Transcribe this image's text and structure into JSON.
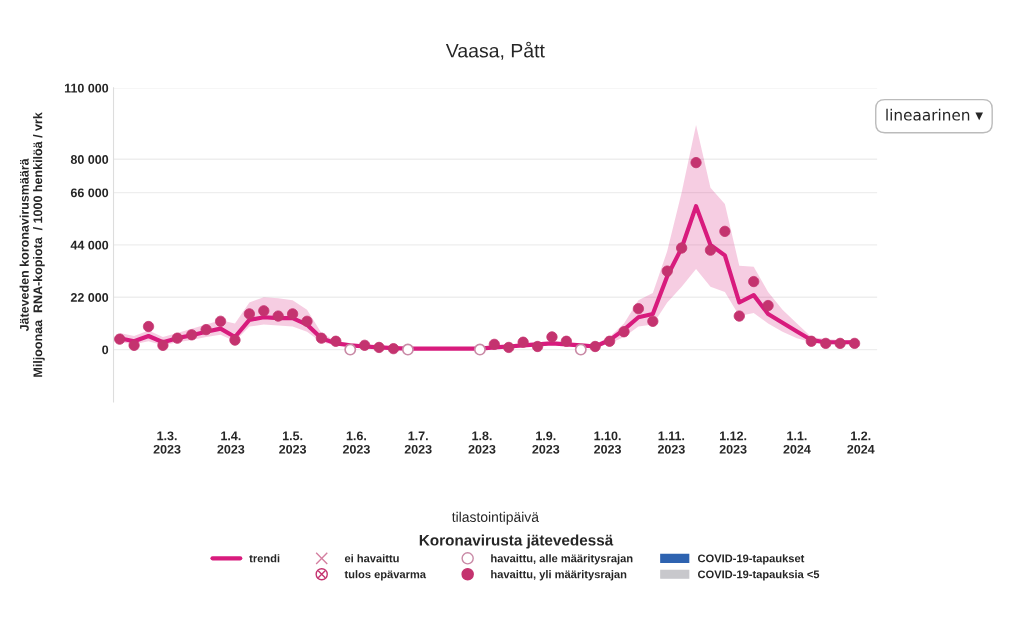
{
  "chart_data": {
    "type": "line",
    "title": "Vaasa, Pått",
    "xlabel": "tilastointipäivä",
    "ylabel": "Jäteveden koronavirusmäärä\nMiljoonaa  RNA-kopiota  / 1000 henkilöä / vrk",
    "legend_title": "Koronavirusta jätevedessä",
    "annotations": [
      "lineaarinen ▾"
    ],
    "xlim": [
      "2023-02-03",
      "2024-02-09"
    ],
    "xticks": [
      {
        "value": "2023-03-01",
        "label": "1.3.\n2023"
      },
      {
        "value": "2023-04-01",
        "label": "1.4.\n2023"
      },
      {
        "value": "2023-05-01",
        "label": "1.5.\n2023"
      },
      {
        "value": "2023-06-01",
        "label": "1.6.\n2023"
      },
      {
        "value": "2023-07-01",
        "label": "1.7.\n2023"
      },
      {
        "value": "2023-08-01",
        "label": "1.8.\n2023"
      },
      {
        "value": "2023-09-01",
        "label": "1.9.\n2023"
      },
      {
        "value": "2023-10-01",
        "label": "1.10.\n2023"
      },
      {
        "value": "2023-11-01",
        "label": "1.11.\n2023"
      },
      {
        "value": "2023-12-01",
        "label": "1.12.\n2023"
      },
      {
        "value": "2024-01-01",
        "label": "1.1.\n2024"
      },
      {
        "value": "2024-02-01",
        "label": "1.2.\n2024"
      }
    ],
    "ylim": [
      -22000,
      110000
    ],
    "yticks": [
      0,
      {
        "value": 22000,
        "label": "22 000"
      },
      {
        "value": 44000,
        "label": "44 000"
      },
      {
        "value": 66000,
        "label": "66 000"
      },
      {
        "value": 80000,
        "label": "80 000"
      },
      {
        "value": 110000,
        "label": "110 000"
      }
    ],
    "grid": "y",
    "legend": "bottom",
    "series": [
      {
        "name": "trendi",
        "color": "#d81b7d",
        "marker": "none",
        "line_style": "solid",
        "x": [
          "2023-02-06",
          "2023-02-13",
          "2023-02-20",
          "2023-02-27",
          "2023-03-06",
          "2023-03-13",
          "2023-03-20",
          "2023-03-27",
          "2023-04-03",
          "2023-04-10",
          "2023-04-17",
          "2023-04-24",
          "2023-05-01",
          "2023-05-08",
          "2023-05-15",
          "2023-05-22",
          "2023-05-29",
          "2023-06-05",
          "2023-06-12",
          "2023-06-19",
          "2023-06-26",
          "2023-07-03",
          "2023-07-10",
          "2023-07-17",
          "2023-07-24",
          "2023-07-31",
          "2023-08-07",
          "2023-08-14",
          "2023-08-21",
          "2023-08-28",
          "2023-09-04",
          "2023-09-11",
          "2023-09-18",
          "2023-09-25",
          "2023-10-02",
          "2023-10-09",
          "2023-10-16",
          "2023-10-23",
          "2023-10-30",
          "2023-11-06",
          "2023-11-13",
          "2023-11-20",
          "2023-11-27",
          "2023-12-04",
          "2023-12-11",
          "2023-12-18",
          "2023-12-25",
          "2024-01-01",
          "2024-01-08",
          "2024-01-15",
          "2024-01-22",
          "2024-01-29"
        ],
        "values": [
          4800,
          3500,
          5700,
          3100,
          4800,
          6000,
          7500,
          8800,
          5300,
          12500,
          13600,
          13200,
          13200,
          10500,
          4800,
          2600,
          1800,
          1300,
          900,
          600,
          400,
          400,
          400,
          400,
          400,
          400,
          900,
          1300,
          1800,
          2200,
          2600,
          2200,
          1800,
          1300,
          4000,
          8400,
          13600,
          15000,
          30800,
          42700,
          60300,
          44000,
          39600,
          19800,
          22900,
          15000,
          11300,
          7600,
          4000,
          3100,
          3100,
          3100
        ],
        "lower": [
          3100,
          2200,
          3500,
          1800,
          3100,
          4000,
          5300,
          6200,
          3500,
          9700,
          10500,
          10100,
          9700,
          7500,
          3100,
          1800,
          1300,
          900,
          400,
          200,
          0,
          0,
          0,
          0,
          0,
          0,
          400,
          900,
          1300,
          1800,
          2200,
          1800,
          1300,
          900,
          2600,
          5300,
          9700,
          10500,
          19800,
          26400,
          33900,
          26400,
          24200,
          14100,
          15400,
          11000,
          7500,
          4800,
          3100,
          2200,
          2200,
          2200
        ],
        "upper": [
          7000,
          5700,
          8000,
          5300,
          7000,
          8800,
          10500,
          12300,
          11000,
          19800,
          22000,
          21600,
          20700,
          16700,
          7000,
          3500,
          2600,
          2200,
          1800,
          1300,
          900,
          900,
          900,
          900,
          900,
          900,
          1800,
          2200,
          2600,
          3100,
          3500,
          3100,
          2600,
          2200,
          5300,
          11000,
          20700,
          23800,
          41400,
          66000,
          94400,
          68000,
          61200,
          35200,
          34800,
          24200,
          16700,
          11000,
          5300,
          4400,
          4000,
          4000
        ]
      },
      {
        "name": "ei havaittu",
        "type": "scatter",
        "color": "#d47fa0",
        "marker": "cross"
      },
      {
        "name": "tulos epävarma",
        "type": "scatter",
        "color": "#c4336f",
        "marker": "circlecross"
      },
      {
        "name": "havaittu, alle määritysrajan",
        "type": "scatter",
        "color": "#c98aa6",
        "marker": "opencircle",
        "x": [
          "2023-05-29",
          "2023-06-26",
          "2023-07-31",
          "2023-09-18"
        ],
        "values": [
          0,
          0,
          0,
          0
        ]
      },
      {
        "name": "havaittu, yli määritysrajan",
        "type": "scatter",
        "color": "#c4336f",
        "marker": "circle",
        "x": [
          "2023-02-06",
          "2023-02-13",
          "2023-02-20",
          "2023-02-27",
          "2023-03-06",
          "2023-03-13",
          "2023-03-20",
          "2023-03-27",
          "2023-04-03",
          "2023-04-10",
          "2023-04-17",
          "2023-04-24",
          "2023-05-01",
          "2023-05-08",
          "2023-05-15",
          "2023-05-22",
          "2023-06-05",
          "2023-06-12",
          "2023-06-19",
          "2023-08-07",
          "2023-08-14",
          "2023-08-21",
          "2023-08-28",
          "2023-09-04",
          "2023-09-11",
          "2023-09-25",
          "2023-10-02",
          "2023-10-09",
          "2023-10-16",
          "2023-10-23",
          "2023-10-30",
          "2023-11-06",
          "2023-11-13",
          "2023-11-20",
          "2023-11-27",
          "2023-12-04",
          "2023-12-11",
          "2023-12-18",
          "2024-01-08",
          "2024-01-15",
          "2024-01-22",
          "2024-01-29"
        ],
        "values": [
          4400,
          1800,
          9700,
          1800,
          4800,
          6200,
          8400,
          11900,
          4000,
          15000,
          16300,
          14100,
          15000,
          11900,
          4800,
          3500,
          1800,
          900,
          400,
          2200,
          900,
          3100,
          1300,
          5300,
          3500,
          1300,
          3500,
          7500,
          17200,
          11900,
          33000,
          42700,
          78600,
          41800,
          49700,
          14100,
          28600,
          18500,
          3500,
          2600,
          2600,
          2600
        ]
      },
      {
        "name": "COVID-19-tapaukset",
        "type": "bar",
        "color": "#2e63b0"
      },
      {
        "name": "COVID-19-tapauksia <5",
        "type": "bar",
        "color": "#c8c8cc"
      }
    ]
  }
}
